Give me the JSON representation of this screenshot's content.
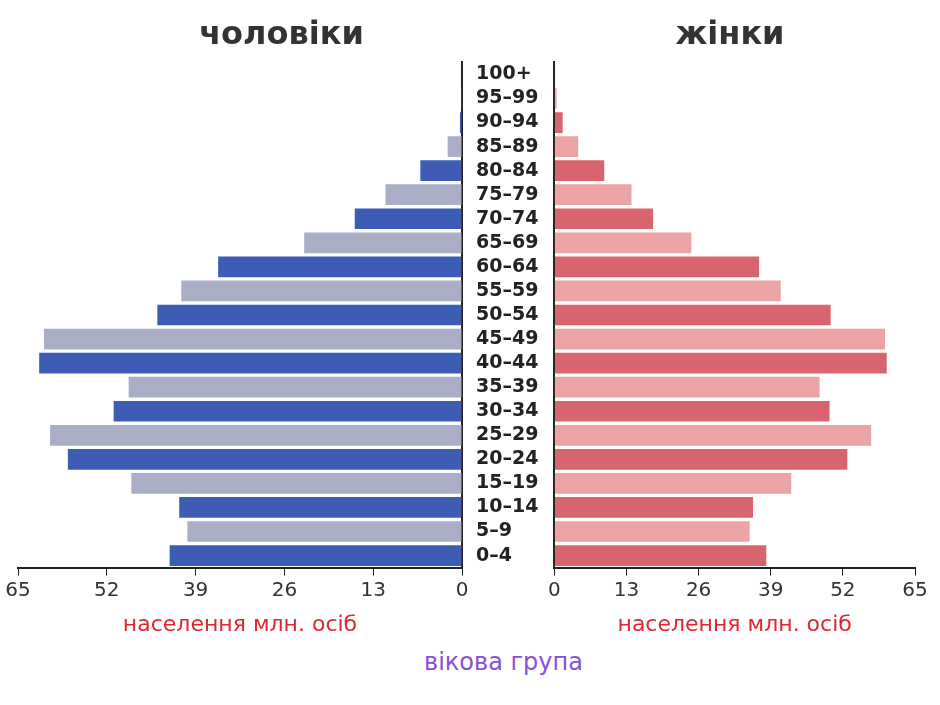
{
  "chart_data": [
    {
      "type": "bar",
      "orientation": "horizontal",
      "title": "чоловіки",
      "x_label": "населення млн. осіб",
      "y_label": "вікова група",
      "categories": [
        "100+",
        "95–99",
        "90–94",
        "85–89",
        "80–84",
        "75–79",
        "70–74",
        "65–69",
        "60–64",
        "55–59",
        "50–54",
        "45–49",
        "40–44",
        "35–39",
        "30–34",
        "25–29",
        "20–24",
        "15–19",
        "10–14",
        "5–9",
        "0–4"
      ],
      "values": [
        0,
        0.1,
        0.3,
        2.1,
        6.1,
        11.2,
        15.7,
        23.1,
        35.7,
        41.1,
        44.6,
        61.2,
        61.9,
        48.8,
        51.0,
        60.3,
        57.7,
        48.4,
        41.4,
        40.2,
        42.8
      ],
      "colors": [
        "#3d5db5",
        "#a9adc6",
        "#3d5db5",
        "#a9adc6",
        "#3d5db5",
        "#a9adc6",
        "#3d5db5",
        "#a9adc6",
        "#3d5db5",
        "#a9adc6",
        "#3d5db5",
        "#a9adc6",
        "#3d5db5",
        "#a9adc6",
        "#3d5db5",
        "#a9adc6",
        "#3d5db5",
        "#a9adc6",
        "#3d5db5",
        "#a9adc6",
        "#3d5db5"
      ],
      "xlim": [
        0,
        65
      ],
      "xticks": [
        0,
        13,
        26,
        39,
        52,
        65
      ],
      "grid": false
    },
    {
      "type": "bar",
      "orientation": "horizontal",
      "title": "жінки",
      "x_label": "населення млн. осіб",
      "categories": [
        "100+",
        "95–99",
        "90–94",
        "85–89",
        "80–84",
        "75–79",
        "70–74",
        "65–69",
        "60–64",
        "55–59",
        "50–54",
        "45–49",
        "40–44",
        "35–39",
        "30–34",
        "25–29",
        "20–24",
        "15–19",
        "10–14",
        "5–9",
        "0–4"
      ],
      "values": [
        0.1,
        0.4,
        1.5,
        4.3,
        9.0,
        13.9,
        17.8,
        24.7,
        36.9,
        40.8,
        49.8,
        59.6,
        59.9,
        47.8,
        49.6,
        57.1,
        52.8,
        42.7,
        35.8,
        35.2,
        38.2
      ],
      "colors": [
        "#d8646e",
        "#eba3a3",
        "#d8646e",
        "#eba3a3",
        "#d8646e",
        "#eba3a3",
        "#d8646e",
        "#eba3a3",
        "#d8646e",
        "#eba3a3",
        "#d8646e",
        "#eba3a3",
        "#d8646e",
        "#eba3a3",
        "#d8646e",
        "#eba3a3",
        "#d8646e",
        "#eba3a3",
        "#d8646e",
        "#eba3a3",
        "#d8646e"
      ],
      "xlim": [
        0,
        65
      ],
      "xticks": [
        0,
        13,
        26,
        39,
        52,
        65
      ],
      "grid": false,
      "tick_labels": "x"
    }
  ]
}
